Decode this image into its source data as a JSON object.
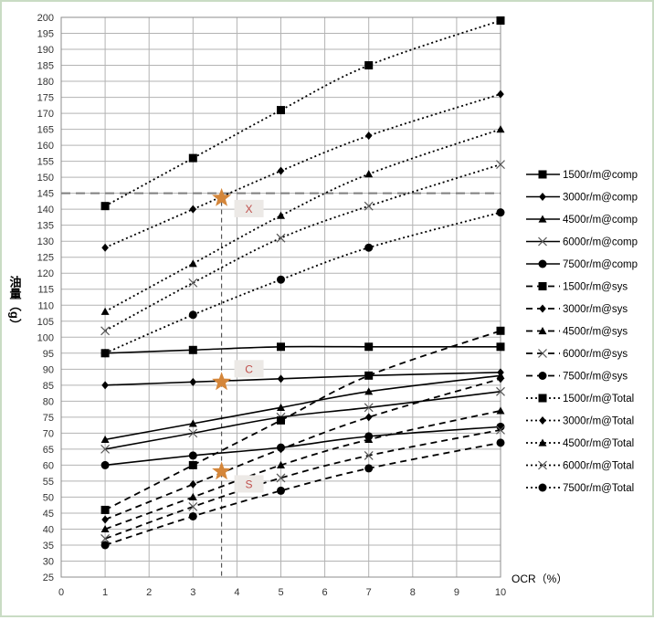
{
  "chart_data": {
    "type": "line",
    "xlabel": "OCR（%）",
    "ylabel": "油量（g）",
    "xlim": [
      0,
      10
    ],
    "ylim": [
      25,
      200
    ],
    "x_ticks": [
      0,
      1,
      2,
      3,
      4,
      5,
      6,
      7,
      8,
      9,
      10
    ],
    "y_ticks": [
      25,
      30,
      35,
      40,
      45,
      50,
      55,
      60,
      65,
      70,
      75,
      80,
      85,
      90,
      95,
      100,
      105,
      110,
      115,
      120,
      125,
      130,
      135,
      140,
      145,
      150,
      155,
      160,
      165,
      170,
      175,
      180,
      185,
      190,
      195,
      200
    ],
    "grid": true,
    "legend_position": "right",
    "x": [
      1,
      3,
      5,
      7,
      10
    ],
    "series": [
      {
        "name": "1500r/m@comp",
        "values": [
          95,
          96,
          97,
          97,
          97
        ],
        "dash": "solid",
        "marker": "square"
      },
      {
        "name": "3000r/m@comp",
        "values": [
          85,
          86,
          87,
          88,
          89
        ],
        "dash": "solid",
        "marker": "diamond"
      },
      {
        "name": "4500r/m@comp",
        "values": [
          68,
          73,
          78,
          83,
          88
        ],
        "dash": "solid",
        "marker": "triangle"
      },
      {
        "name": "6000r/m@comp",
        "values": [
          65,
          70,
          75,
          78,
          83
        ],
        "dash": "solid",
        "marker": "x"
      },
      {
        "name": "7500r/m@comp",
        "values": [
          60,
          63,
          65.5,
          69,
          72
        ],
        "dash": "solid",
        "marker": "circle"
      },
      {
        "name": "1500r/m@sys",
        "values": [
          46,
          60,
          74,
          88,
          102
        ],
        "dash": "dashed",
        "marker": "square"
      },
      {
        "name": "3000r/m@sys",
        "values": [
          43,
          54,
          65,
          75,
          87
        ],
        "dash": "dashed",
        "marker": "diamond"
      },
      {
        "name": "4500r/m@sys",
        "values": [
          40,
          50,
          60,
          68,
          77
        ],
        "dash": "dashed",
        "marker": "triangle"
      },
      {
        "name": "6000r/m@sys",
        "values": [
          37,
          47,
          56,
          63,
          71
        ],
        "dash": "dashed",
        "marker": "x"
      },
      {
        "name": "7500r/m@sys",
        "values": [
          35,
          44,
          52,
          59,
          67
        ],
        "dash": "dashed",
        "marker": "circle"
      },
      {
        "name": "1500r/m@Total",
        "values": [
          141,
          156,
          171,
          185,
          199
        ],
        "dash": "dotted",
        "marker": "square"
      },
      {
        "name": "3000r/m@Total",
        "values": [
          128,
          140,
          152,
          163,
          176
        ],
        "dash": "dotted",
        "marker": "diamond"
      },
      {
        "name": "4500r/m@Total",
        "values": [
          108,
          123,
          138,
          151,
          165
        ],
        "dash": "dotted",
        "marker": "triangle"
      },
      {
        "name": "6000r/m@Total",
        "values": [
          102,
          117,
          131,
          141,
          154
        ],
        "dash": "dotted",
        "marker": "x"
      },
      {
        "name": "7500r/m@Total",
        "values": [
          95,
          107,
          118,
          128,
          139
        ],
        "dash": "dotted",
        "marker": "circle"
      }
    ],
    "reference_line": {
      "y": 145,
      "x": 3.65
    },
    "stars": [
      {
        "label": "X",
        "x": 3.65,
        "y": 143.5
      },
      {
        "label": "C",
        "x": 3.65,
        "y": 86
      },
      {
        "label": "S",
        "x": 3.65,
        "y": 58
      }
    ],
    "colors": {
      "line": "#000000",
      "grid": "#b3b3b3",
      "star": "#d4863a",
      "tag_bg": "#ece9e6",
      "tag_text": "#c0504d",
      "refline": "#7f7f7f",
      "frame": "#c9dcc4"
    }
  }
}
